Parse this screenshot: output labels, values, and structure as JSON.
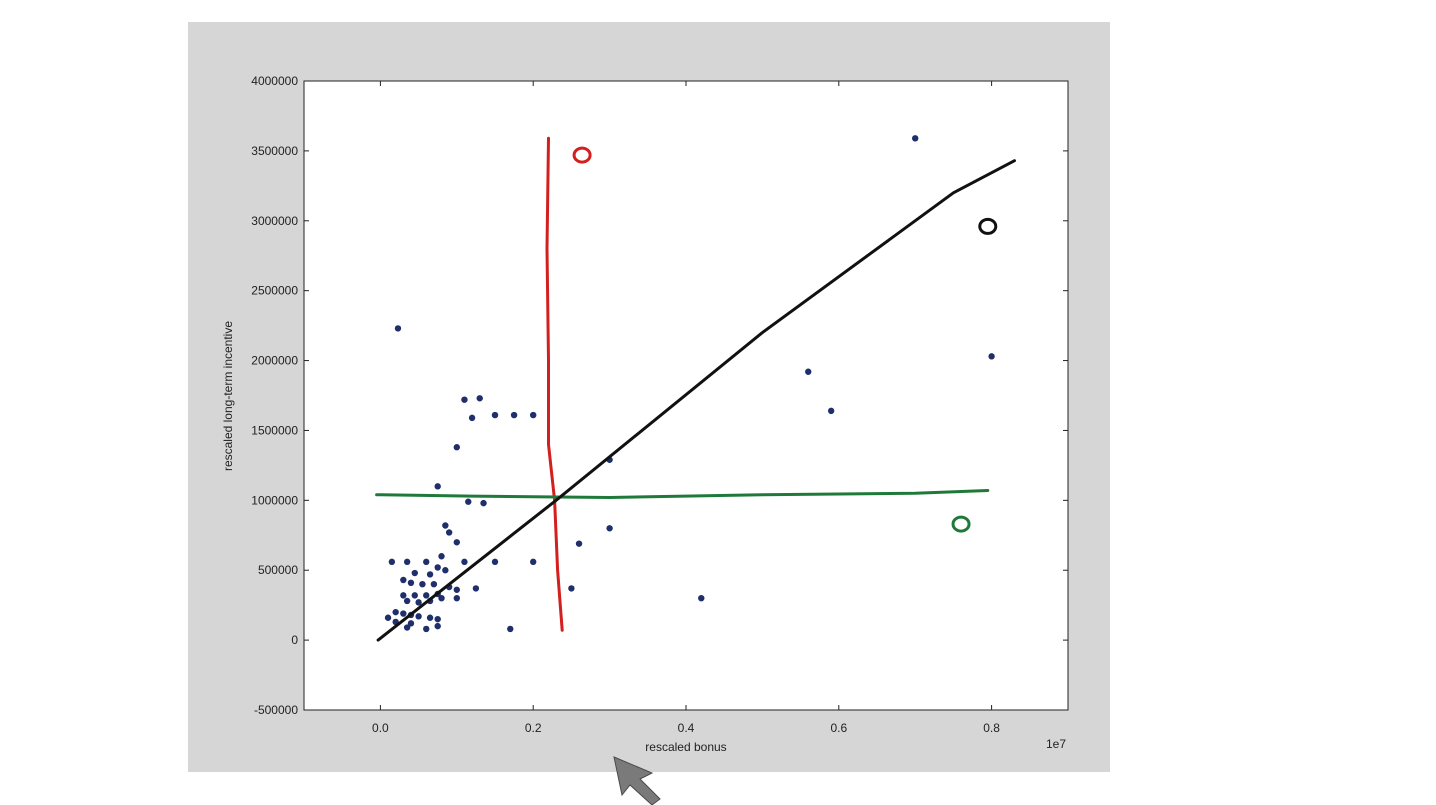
{
  "chart_data": {
    "type": "scatter",
    "title": "",
    "xlabel": "rescaled bonus",
    "ylabel": "rescaled long-term incentive",
    "x_offset_label": "1e7",
    "xlim": [
      -0.1,
      0.9
    ],
    "ylim": [
      -500000,
      4000000
    ],
    "x_ticks": [
      0.0,
      0.2,
      0.4,
      0.6,
      0.8
    ],
    "x_tick_labels": [
      "0.0",
      "0.2",
      "0.4",
      "0.6",
      "0.8"
    ],
    "y_ticks": [
      -500000,
      0,
      500000,
      1000000,
      1500000,
      2000000,
      2500000,
      3000000,
      3500000,
      4000000
    ],
    "y_tick_labels": [
      "-500000",
      "0",
      "500000",
      "1000000",
      "1500000",
      "2000000",
      "2500000",
      "3000000",
      "3500000",
      "4000000"
    ],
    "grid": false,
    "marker_color": "#1f2f6b",
    "points": [
      [
        0.023,
        2230000
      ],
      [
        0.11,
        1720000
      ],
      [
        0.13,
        1730000
      ],
      [
        0.15,
        1610000
      ],
      [
        0.175,
        1610000
      ],
      [
        0.2,
        1610000
      ],
      [
        0.12,
        1590000
      ],
      [
        0.1,
        1380000
      ],
      [
        0.075,
        1100000
      ],
      [
        0.115,
        990000
      ],
      [
        0.135,
        980000
      ],
      [
        0.085,
        820000
      ],
      [
        0.09,
        770000
      ],
      [
        0.1,
        700000
      ],
      [
        0.08,
        600000
      ],
      [
        0.11,
        560000
      ],
      [
        0.15,
        560000
      ],
      [
        0.2,
        560000
      ],
      [
        0.015,
        560000
      ],
      [
        0.035,
        560000
      ],
      [
        0.06,
        560000
      ],
      [
        0.075,
        520000
      ],
      [
        0.085,
        500000
      ],
      [
        0.045,
        480000
      ],
      [
        0.065,
        470000
      ],
      [
        0.03,
        430000
      ],
      [
        0.04,
        410000
      ],
      [
        0.055,
        400000
      ],
      [
        0.07,
        400000
      ],
      [
        0.09,
        380000
      ],
      [
        0.1,
        360000
      ],
      [
        0.125,
        370000
      ],
      [
        0.03,
        320000
      ],
      [
        0.045,
        320000
      ],
      [
        0.06,
        320000
      ],
      [
        0.075,
        330000
      ],
      [
        0.1,
        300000
      ],
      [
        0.035,
        280000
      ],
      [
        0.05,
        270000
      ],
      [
        0.065,
        280000
      ],
      [
        0.08,
        300000
      ],
      [
        0.02,
        200000
      ],
      [
        0.03,
        190000
      ],
      [
        0.04,
        180000
      ],
      [
        0.01,
        160000
      ],
      [
        0.05,
        170000
      ],
      [
        0.065,
        160000
      ],
      [
        0.075,
        150000
      ],
      [
        0.02,
        130000
      ],
      [
        0.04,
        120000
      ],
      [
        0.075,
        100000
      ],
      [
        0.035,
        90000
      ],
      [
        0.06,
        80000
      ],
      [
        0.17,
        80000
      ],
      [
        0.3,
        1290000
      ],
      [
        0.3,
        800000
      ],
      [
        0.26,
        690000
      ],
      [
        0.25,
        370000
      ],
      [
        0.42,
        300000
      ],
      [
        0.56,
        1920000
      ],
      [
        0.7,
        3590000
      ],
      [
        0.8,
        2030000
      ],
      [
        0.59,
        1640000
      ]
    ],
    "annotations": [
      {
        "id": "red-line",
        "color": "#d41f1f",
        "label": "O",
        "path": [
          [
            0.22,
            3590000
          ],
          [
            0.218,
            2800000
          ],
          [
            0.22,
            2000000
          ],
          [
            0.22,
            1400000
          ],
          [
            0.228,
            1000000
          ],
          [
            0.232,
            500000
          ],
          [
            0.238,
            70000
          ]
        ]
      },
      {
        "id": "green-line",
        "color": "#1f7a3a",
        "label": "O",
        "path": [
          [
            -0.005,
            1040000
          ],
          [
            0.12,
            1030000
          ],
          [
            0.3,
            1020000
          ],
          [
            0.5,
            1040000
          ],
          [
            0.7,
            1050000
          ],
          [
            0.795,
            1070000
          ]
        ]
      },
      {
        "id": "black-line",
        "color": "#111111",
        "label": "O",
        "path": [
          [
            -0.003,
            0
          ],
          [
            0.23,
            1000000
          ],
          [
            0.5,
            2200000
          ],
          [
            0.75,
            3200000
          ],
          [
            0.83,
            3430000
          ]
        ]
      }
    ],
    "annotation_labels": [
      {
        "color": "#d41f1f",
        "x": 0.264,
        "y": 3470000
      },
      {
        "color": "#111111",
        "x": 0.795,
        "y": 2960000
      },
      {
        "color": "#1f7a3a",
        "x": 0.76,
        "y": 830000
      }
    ]
  }
}
